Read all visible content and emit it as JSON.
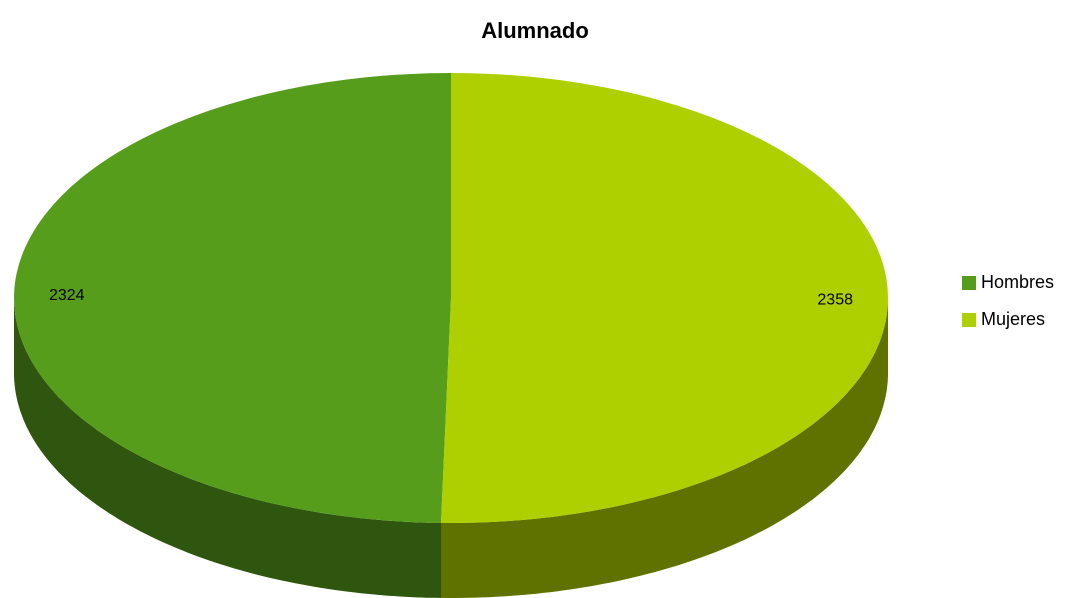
{
  "chart_data": {
    "type": "pie",
    "title": "Alumnado",
    "categories": [
      "Hombres",
      "Mujeres"
    ],
    "values": [
      2324,
      2358
    ],
    "colors": [
      "#579d1c",
      "#aecf00"
    ],
    "legend": "right"
  }
}
